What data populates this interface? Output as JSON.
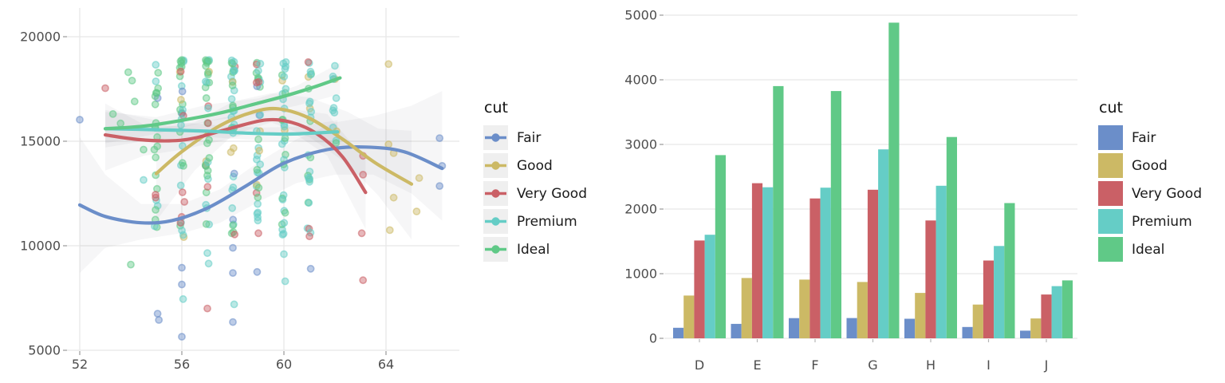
{
  "figure": {
    "background": "#ffffff",
    "text_color": "#4d4d4d",
    "grid_color": "#e7e7e7"
  },
  "cuts": [
    "Fair",
    "Good",
    "Very Good",
    "Premium",
    "Ideal"
  ],
  "palette": {
    "Fair": "#6b8ec9",
    "Good": "#ccb965",
    "Very Good": "#ca6066",
    "Premium": "#65cdc6",
    "Ideal": "#60c987"
  },
  "chart_data": [
    {
      "type": "scatter",
      "title": "",
      "xlabel": "",
      "ylabel": "",
      "legend_title": "cut",
      "legend_position": "right",
      "grid": true,
      "x_ticks": [
        52,
        56,
        60,
        64
      ],
      "y_ticks": [
        5000,
        10000,
        15000,
        20000
      ],
      "xlim": [
        51.5,
        66.9
      ],
      "ylim": [
        5000,
        20700
      ],
      "smooth_lines": [
        {
          "name": "Fair",
          "points": [
            [
              52,
              11950
            ],
            [
              53,
              11400
            ],
            [
              54.4,
              11100
            ],
            [
              55.6,
              11200
            ],
            [
              57,
              11800
            ],
            [
              58.5,
              12850
            ],
            [
              60,
              13950
            ],
            [
              61.7,
              14600
            ],
            [
              63.2,
              14720
            ],
            [
              64.7,
              14500
            ],
            [
              66.2,
              13700
            ]
          ]
        },
        {
          "name": "Good",
          "points": [
            [
              55,
              13450
            ],
            [
              56,
              14500
            ],
            [
              57.5,
              15750
            ],
            [
              58.8,
              16400
            ],
            [
              59.8,
              16550
            ],
            [
              61,
              16100
            ],
            [
              62.3,
              15100
            ],
            [
              63.6,
              13950
            ],
            [
              65,
              12950
            ]
          ]
        },
        {
          "name": "Very Good",
          "points": [
            [
              53,
              15300
            ],
            [
              54.3,
              15080
            ],
            [
              55.5,
              15020
            ],
            [
              56.5,
              15150
            ],
            [
              58,
              15650
            ],
            [
              59.3,
              16020
            ],
            [
              60.3,
              15900
            ],
            [
              61.3,
              15350
            ],
            [
              62.3,
              14250
            ],
            [
              63.2,
              12550
            ]
          ]
        },
        {
          "name": "Premium",
          "points": [
            [
              53,
              15600
            ],
            [
              55,
              15550
            ],
            [
              57,
              15480
            ],
            [
              58.5,
              15390
            ],
            [
              60,
              15340
            ],
            [
              61,
              15380
            ],
            [
              62.1,
              15450
            ]
          ]
        },
        {
          "name": "Ideal",
          "points": [
            [
              53,
              15600
            ],
            [
              54.5,
              15720
            ],
            [
              56,
              16000
            ],
            [
              57.5,
              16350
            ],
            [
              58.6,
              16700
            ],
            [
              60,
              17150
            ],
            [
              61.2,
              17600
            ],
            [
              62.2,
              18030
            ]
          ]
        }
      ],
      "ribbons": [
        {
          "name": "Fair",
          "pts": [
            [
              52,
              8700,
              15200
            ],
            [
              53,
              9900,
              13400
            ],
            [
              54.4,
              10300,
              12000
            ],
            [
              56,
              10600,
              12000
            ],
            [
              57.5,
              11100,
              12700
            ],
            [
              59,
              12100,
              14000
            ],
            [
              60.5,
              13000,
              15100
            ],
            [
              62,
              13400,
              15900
            ],
            [
              63.5,
              13400,
              16200
            ],
            [
              65,
              12500,
              16700
            ],
            [
              66.2,
              11200,
              17400
            ]
          ]
        },
        {
          "name": "Good",
          "pts": [
            [
              55,
              11200,
              15600
            ],
            [
              56.5,
              13600,
              15900
            ],
            [
              58,
              15300,
              16900
            ],
            [
              59.5,
              15900,
              17300
            ],
            [
              61,
              15200,
              17100
            ],
            [
              62.5,
              13900,
              16400
            ],
            [
              63.7,
              12400,
              15600
            ],
            [
              65,
              10300,
              15500
            ]
          ]
        },
        {
          "name": "Very Good",
          "pts": [
            [
              53,
              13600,
              16800
            ],
            [
              54.5,
              14300,
              15800
            ],
            [
              56,
              14600,
              15700
            ],
            [
              57.5,
              15000,
              16100
            ],
            [
              59,
              15500,
              16500
            ],
            [
              60.5,
              15300,
              16500
            ],
            [
              61.7,
              14300,
              16300
            ],
            [
              63.2,
              10800,
              14100
            ]
          ]
        },
        {
          "name": "Premium",
          "pts": [
            [
              53,
              14700,
              16500
            ],
            [
              55,
              15100,
              16000
            ],
            [
              57,
              15200,
              15800
            ],
            [
              59,
              15050,
              15650
            ],
            [
              60.5,
              15000,
              15700
            ],
            [
              62.1,
              14900,
              16000
            ]
          ]
        },
        {
          "name": "Ideal",
          "pts": [
            [
              53,
              14900,
              16400
            ],
            [
              55,
              15350,
              16150
            ],
            [
              57,
              15950,
              16750
            ],
            [
              59,
              16300,
              17050
            ],
            [
              60.5,
              16700,
              17650
            ],
            [
              62.2,
              17250,
              18750
            ]
          ]
        }
      ],
      "scatter_columns": [
        {
          "depth": 55,
          "n": 26,
          "pmin": 10800,
          "pmax": 18850,
          "bias": 1.35,
          "jitter": 0.16,
          "seed": 5501,
          "weights": [
            5,
            4,
            10,
            14,
            67
          ]
        },
        {
          "depth": 56,
          "n": 34,
          "pmin": 10300,
          "pmax": 18900,
          "bias": 1.35,
          "jitter": 0.16,
          "seed": 5602,
          "weights": [
            6,
            5,
            12,
            24,
            53
          ]
        },
        {
          "depth": 57,
          "n": 36,
          "pmin": 9900,
          "pmax": 18900,
          "bias": 1.35,
          "jitter": 0.16,
          "seed": 5703,
          "weights": [
            4,
            6,
            12,
            30,
            48
          ]
        },
        {
          "depth": 58,
          "n": 38,
          "pmin": 10500,
          "pmax": 18900,
          "bias": 1.3,
          "jitter": 0.16,
          "seed": 5804,
          "weights": [
            3,
            5,
            10,
            40,
            42
          ]
        },
        {
          "depth": 59,
          "n": 36,
          "pmin": 11000,
          "pmax": 18900,
          "bias": 1.3,
          "jitter": 0.16,
          "seed": 5905,
          "weights": [
            2,
            5,
            10,
            47,
            36
          ]
        },
        {
          "depth": 60,
          "n": 34,
          "pmin": 10400,
          "pmax": 18900,
          "bias": 1.3,
          "jitter": 0.16,
          "seed": 6006,
          "weights": [
            2,
            4,
            8,
            55,
            31
          ]
        },
        {
          "depth": 61,
          "n": 26,
          "pmin": 10400,
          "pmax": 18800,
          "bias": 1.25,
          "jitter": 0.16,
          "seed": 6107,
          "weights": [
            1,
            5,
            6,
            63,
            25
          ]
        },
        {
          "depth": 62,
          "n": 13,
          "pmin": 14900,
          "pmax": 18700,
          "bias": 1.1,
          "jitter": 0.16,
          "seed": 6208,
          "weights": [
            0,
            15,
            10,
            50,
            25
          ]
        }
      ],
      "scatter_points": [
        [
          52,
          16030,
          0
        ],
        [
          53,
          17540,
          2
        ],
        [
          53.3,
          16300,
          4
        ],
        [
          53.6,
          15850,
          4
        ],
        [
          53.9,
          18300,
          4
        ],
        [
          54.05,
          17900,
          4
        ],
        [
          54.15,
          16900,
          4
        ],
        [
          54,
          9100,
          4
        ],
        [
          54.5,
          14600,
          4
        ],
        [
          54.5,
          13150,
          3
        ],
        [
          55.05,
          6750,
          0
        ],
        [
          55.1,
          6450,
          0
        ],
        [
          56,
          8950,
          0
        ],
        [
          56,
          8150,
          0
        ],
        [
          56.05,
          7450,
          3
        ],
        [
          56,
          5650,
          0
        ],
        [
          56.1,
          12100,
          2
        ],
        [
          55.95,
          11100,
          2
        ],
        [
          57,
          9650,
          3
        ],
        [
          57.05,
          9150,
          3
        ],
        [
          57,
          7000,
          2
        ],
        [
          58,
          9900,
          0
        ],
        [
          58,
          8700,
          0
        ],
        [
          58.05,
          7200,
          3
        ],
        [
          58,
          6350,
          0
        ],
        [
          59,
          10600,
          2
        ],
        [
          58.95,
          8750,
          0
        ],
        [
          60,
          9600,
          3
        ],
        [
          60.05,
          8300,
          3
        ],
        [
          61,
          10450,
          2
        ],
        [
          61.05,
          8900,
          0
        ],
        [
          63.1,
          14300,
          2
        ],
        [
          63.1,
          13400,
          2
        ],
        [
          63.05,
          10600,
          2
        ],
        [
          63.1,
          8350,
          2
        ],
        [
          64.1,
          18690,
          1
        ],
        [
          64.1,
          14850,
          1
        ],
        [
          64.15,
          10750,
          1
        ],
        [
          64.3,
          14430,
          1
        ],
        [
          64.3,
          12300,
          1
        ],
        [
          65.2,
          11640,
          1
        ],
        [
          65.3,
          13240,
          1
        ],
        [
          66.1,
          15150,
          0
        ],
        [
          66.2,
          13820,
          0
        ],
        [
          66.1,
          12860,
          0
        ]
      ]
    },
    {
      "type": "bar",
      "grouped": true,
      "title": "",
      "xlabel": "",
      "ylabel": "",
      "legend_title": "cut",
      "legend_position": "right",
      "grid": true,
      "categories": [
        "D",
        "E",
        "F",
        "G",
        "H",
        "I",
        "J"
      ],
      "y_ticks": [
        0,
        1000,
        2000,
        3000,
        4000,
        5000
      ],
      "ylim": [
        0,
        5100
      ],
      "series": [
        {
          "name": "Fair",
          "values": [
            163,
            224,
            312,
            314,
            303,
            175,
            119
          ]
        },
        {
          "name": "Good",
          "values": [
            662,
            933,
            909,
            871,
            702,
            522,
            307
          ]
        },
        {
          "name": "Very Good",
          "values": [
            1513,
            2400,
            2164,
            2299,
            1824,
            1204,
            678
          ]
        },
        {
          "name": "Premium",
          "values": [
            1603,
            2337,
            2331,
            2924,
            2360,
            1428,
            808
          ]
        },
        {
          "name": "Ideal",
          "values": [
            2834,
            3903,
            3826,
            4884,
            3115,
            2093,
            896
          ]
        }
      ]
    }
  ]
}
